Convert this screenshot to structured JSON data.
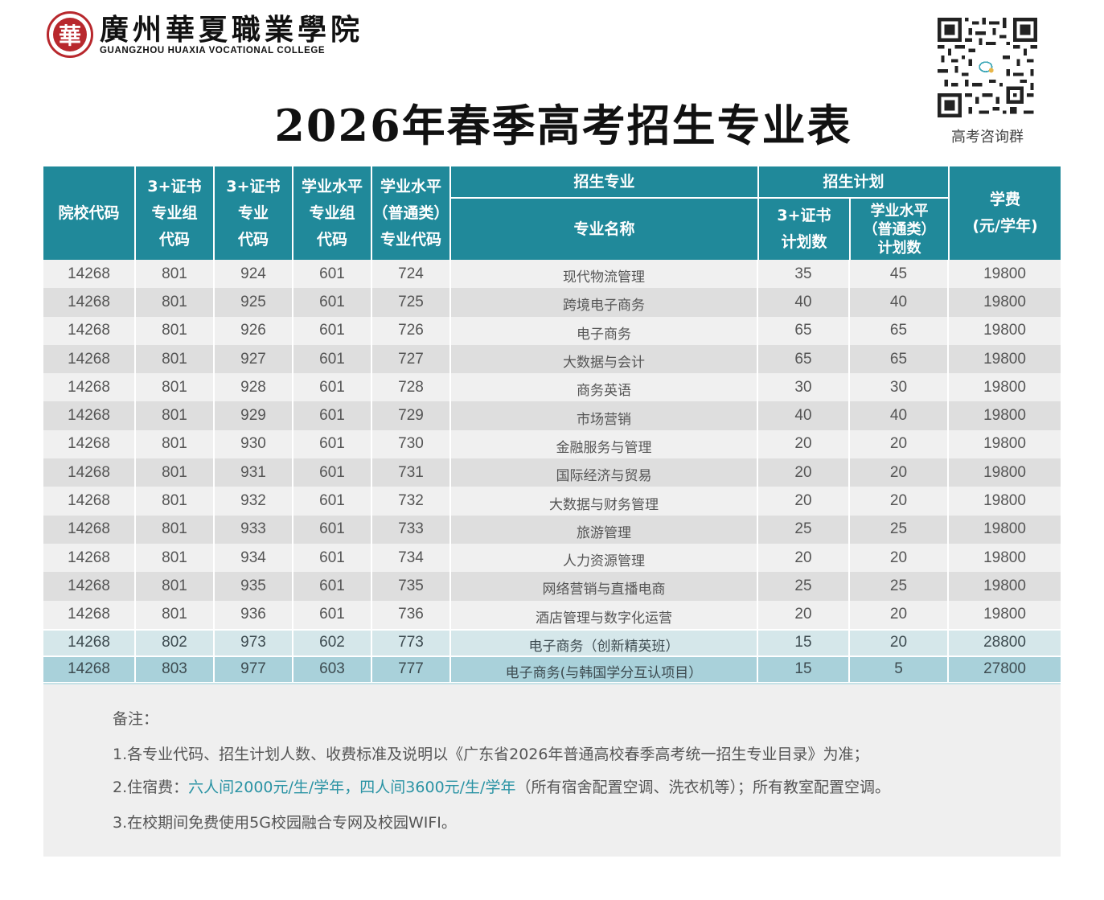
{
  "header": {
    "logo": {
      "emblem_icon": "college-emblem-icon",
      "name_cn": "廣州華夏職業學院",
      "name_en": "GUANGZHOU HUAXIA VOCATIONAL COLLEGE"
    },
    "title": "2026年春季高考招生专业表",
    "qr": {
      "icon": "qr-code-icon",
      "caption": "高考咨询群"
    }
  },
  "table": {
    "colors": {
      "header_bg": "#20899a",
      "row_light": "#f0f0f0",
      "row_dark": "#dedede",
      "row_blue_light": "#d5e7ea",
      "row_blue_dark": "#a9d1da"
    },
    "headers": {
      "school_code": [
        "院校代码"
      ],
      "cert_group_code": [
        "3+证书",
        "专业组",
        "代码"
      ],
      "cert_major_code": [
        "3+证书",
        "专业",
        "代码"
      ],
      "level_group_code": [
        "学业水平",
        "专业组",
        "代码"
      ],
      "level_major_code": [
        "学业水平",
        "（普通类）",
        "专业代码"
      ],
      "major_group": "招生专业",
      "major_name": "专业名称",
      "plan_group": "招生计划",
      "plan_cert": [
        "3+证书",
        "计划数"
      ],
      "plan_level": [
        "学业水平",
        "（普通类）",
        "计划数"
      ],
      "tuition": [
        "学费",
        "(元/学年)"
      ]
    },
    "rows": [
      {
        "school": "14268",
        "cert_group": "801",
        "cert_major": "924",
        "level_group": "601",
        "level_major": "724",
        "name": "现代物流管理",
        "plan_cert": "35",
        "plan_level": "45",
        "tuition": "19800"
      },
      {
        "school": "14268",
        "cert_group": "801",
        "cert_major": "925",
        "level_group": "601",
        "level_major": "725",
        "name": "跨境电子商务",
        "plan_cert": "40",
        "plan_level": "40",
        "tuition": "19800"
      },
      {
        "school": "14268",
        "cert_group": "801",
        "cert_major": "926",
        "level_group": "601",
        "level_major": "726",
        "name": "电子商务",
        "plan_cert": "65",
        "plan_level": "65",
        "tuition": "19800"
      },
      {
        "school": "14268",
        "cert_group": "801",
        "cert_major": "927",
        "level_group": "601",
        "level_major": "727",
        "name": "大数据与会计",
        "plan_cert": "65",
        "plan_level": "65",
        "tuition": "19800"
      },
      {
        "school": "14268",
        "cert_group": "801",
        "cert_major": "928",
        "level_group": "601",
        "level_major": "728",
        "name": "商务英语",
        "plan_cert": "30",
        "plan_level": "30",
        "tuition": "19800"
      },
      {
        "school": "14268",
        "cert_group": "801",
        "cert_major": "929",
        "level_group": "601",
        "level_major": "729",
        "name": "市场营销",
        "plan_cert": "40",
        "plan_level": "40",
        "tuition": "19800"
      },
      {
        "school": "14268",
        "cert_group": "801",
        "cert_major": "930",
        "level_group": "601",
        "level_major": "730",
        "name": "金融服务与管理",
        "plan_cert": "20",
        "plan_level": "20",
        "tuition": "19800"
      },
      {
        "school": "14268",
        "cert_group": "801",
        "cert_major": "931",
        "level_group": "601",
        "level_major": "731",
        "name": "国际经济与贸易",
        "plan_cert": "20",
        "plan_level": "20",
        "tuition": "19800"
      },
      {
        "school": "14268",
        "cert_group": "801",
        "cert_major": "932",
        "level_group": "601",
        "level_major": "732",
        "name": "大数据与财务管理",
        "plan_cert": "20",
        "plan_level": "20",
        "tuition": "19800"
      },
      {
        "school": "14268",
        "cert_group": "801",
        "cert_major": "933",
        "level_group": "601",
        "level_major": "733",
        "name": "旅游管理",
        "plan_cert": "25",
        "plan_level": "25",
        "tuition": "19800"
      },
      {
        "school": "14268",
        "cert_group": "801",
        "cert_major": "934",
        "level_group": "601",
        "level_major": "734",
        "name": "人力资源管理",
        "plan_cert": "20",
        "plan_level": "20",
        "tuition": "19800"
      },
      {
        "school": "14268",
        "cert_group": "801",
        "cert_major": "935",
        "level_group": "601",
        "level_major": "735",
        "name": "网络营销与直播电商",
        "plan_cert": "25",
        "plan_level": "25",
        "tuition": "19800"
      },
      {
        "school": "14268",
        "cert_group": "801",
        "cert_major": "936",
        "level_group": "601",
        "level_major": "736",
        "name": "酒店管理与数字化运营",
        "plan_cert": "20",
        "plan_level": "20",
        "tuition": "19800"
      },
      {
        "school": "14268",
        "cert_group": "802",
        "cert_major": "973",
        "level_group": "602",
        "level_major": "773",
        "name": "电子商务（创新精英班）",
        "plan_cert": "15",
        "plan_level": "20",
        "tuition": "28800"
      },
      {
        "school": "14268",
        "cert_group": "803",
        "cert_major": "977",
        "level_group": "603",
        "level_major": "777",
        "name": "电子商务(与韩国学分互认项目）",
        "plan_cert": "15",
        "plan_level": "5",
        "tuition": "27800"
      }
    ]
  },
  "notes": {
    "heading": "备注：",
    "item1": "1.各专业代码、招生计划人数、收费标准及说明以《广东省2026年普通高校春季高考统一招生专业目录》为准；",
    "item2_prefix": "2.住宿费：",
    "item2_highlight": "六人间2000元/生/学年，四人间3600元/生/学年",
    "item2_suffix": "（所有宿舍配置空调、洗衣机等）；所有教室配置空调。",
    "item3": "3.在校期间免费使用5G校园融合专网及校园WIFI。",
    "highlight_color": "#2a93a4"
  }
}
